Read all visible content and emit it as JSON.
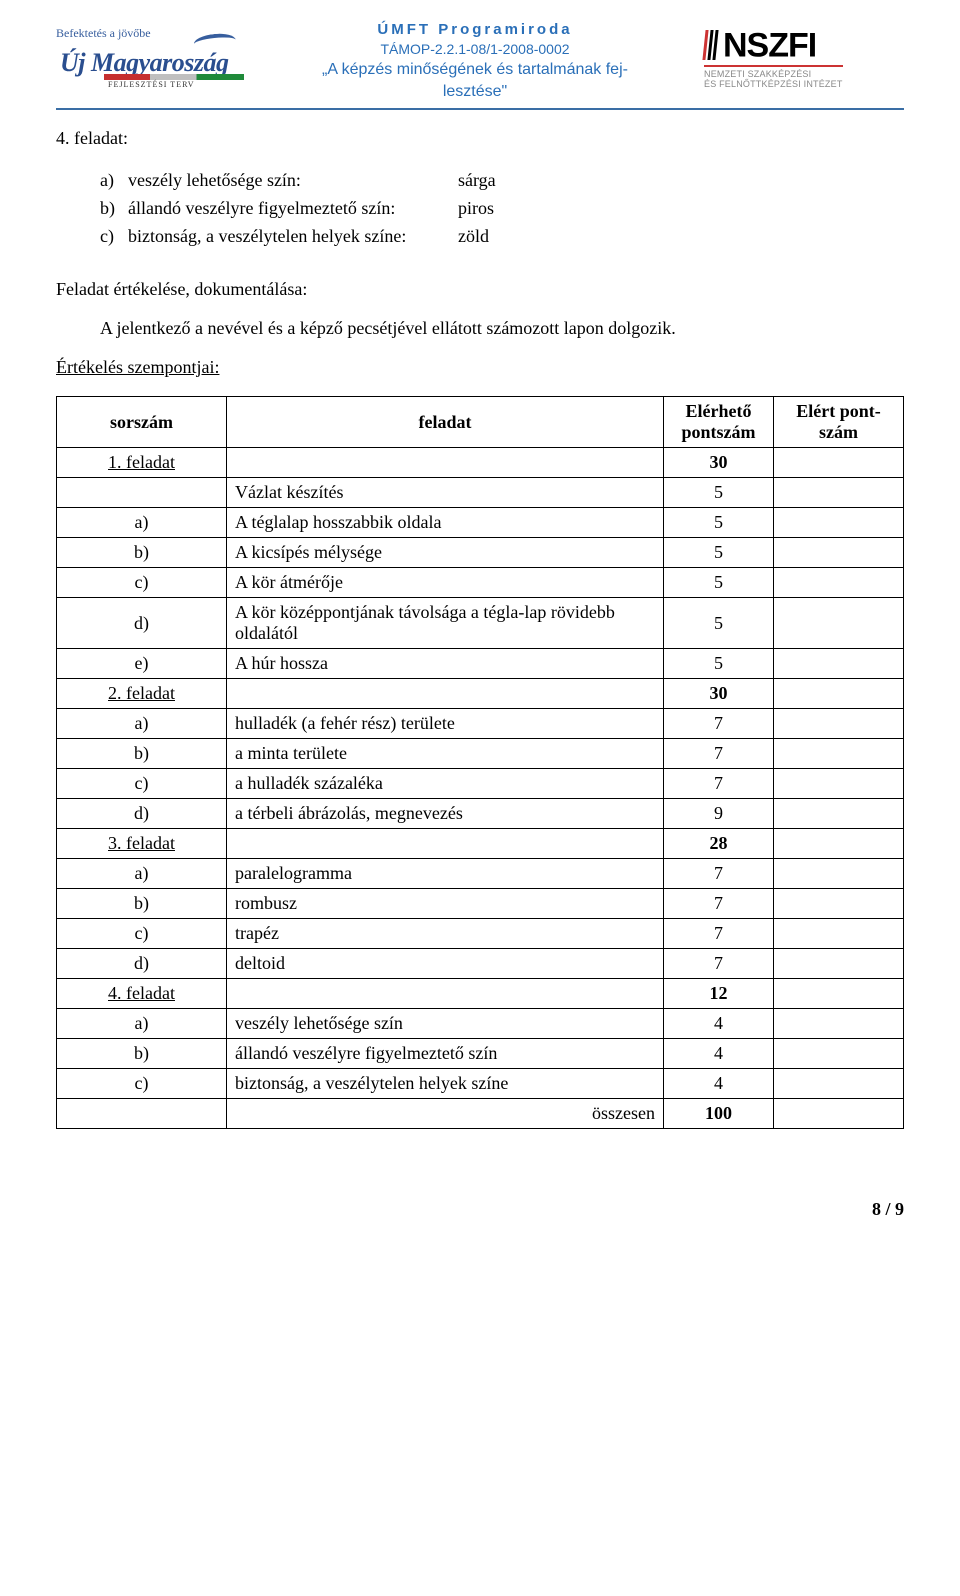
{
  "header": {
    "logo_left_script": "Befektetés a jövőbe",
    "logo_left_big": "Új Magyaroszág",
    "logo_left_sub": "FEJLESZTÉSI TERV",
    "center_line1": "ÚMFT Programiroda",
    "center_line2": "TÁMOP-2.2.1-08/1-2008-0002",
    "center_line3a": "„A képzés minőségének és tartalmának fej-",
    "center_line3b": "lesztése\"",
    "logo_right_big": "NSZFI",
    "logo_right_sub1": "NEMZETI SZAKKÉPZÉSI",
    "logo_right_sub2": "ÉS FELNŐTTKÉPZÉSI INTÉZET"
  },
  "colors": {
    "header_rule": "#3a6ea5",
    "header_text": "#2a6fb8",
    "red": "#c33",
    "green": "#1f8a3a",
    "grey": "#bfbfbf",
    "logo_blue": "#2a4e8f"
  },
  "task_heading": "4. feladat:",
  "bullets": [
    {
      "k": "a)",
      "label": "veszély lehetősége szín:",
      "val": "sárga"
    },
    {
      "k": "b)",
      "label": "állandó veszélyre figyelmeztető szín:",
      "val": "piros"
    },
    {
      "k": "c)",
      "label": "biztonság, a veszélytelen helyek színe:",
      "val": "zöld"
    }
  ],
  "eval_title": "Feladat értékelése, dokumentálása:",
  "eval_sentence": "A jelentkező a nevével és a képző pecsétjével ellátott számozott lapon dolgozik.",
  "eval_subtitle": "Értékelés szempontjai:",
  "tbl": {
    "head": [
      "sorszám",
      "feladat",
      "Elérhető pontszám",
      "Elért pont-szám"
    ],
    "rows": [
      {
        "c0": "1. feladat",
        "c0u": true,
        "c1": "",
        "c2": "30",
        "bold": true
      },
      {
        "c0": "",
        "c1": "Vázlat készítés",
        "c2": "5"
      },
      {
        "c0": "a)",
        "c1": "A téglalap hosszabbik oldala",
        "c2": "5"
      },
      {
        "c0": "b)",
        "c1": "A kicsípés mélysége",
        "c2": "5"
      },
      {
        "c0": "c)",
        "c1": "A kör átmérője",
        "c2": "5"
      },
      {
        "c0": "d)",
        "c1": "A kör középpontjának távolsága a tégla-lap rövidebb oldalától",
        "c2": "5"
      },
      {
        "c0": "e)",
        "c1": "A húr hossza",
        "c2": "5"
      },
      {
        "c0": "2. feladat",
        "c0u": true,
        "c1": "",
        "c2": "30",
        "bold": true
      },
      {
        "c0": "a)",
        "c1": "hulladék (a fehér rész) területe",
        "c2": "7"
      },
      {
        "c0": "b)",
        "c1": "a minta területe",
        "c2": "7"
      },
      {
        "c0": "c)",
        "c1": "a hulladék százaléka",
        "c2": "7"
      },
      {
        "c0": "d)",
        "c1": "a térbeli ábrázolás, megnevezés",
        "c2": "9"
      },
      {
        "c0": "3. feladat",
        "c0u": true,
        "c1": "",
        "c2": "28",
        "bold": true
      },
      {
        "c0": "a)",
        "c1": "paralelogramma",
        "c2": "7"
      },
      {
        "c0": "b)",
        "c1": "rombusz",
        "c2": "7"
      },
      {
        "c0": "c)",
        "c1": "trapéz",
        "c2": "7"
      },
      {
        "c0": "d)",
        "c1": "deltoid",
        "c2": "7"
      },
      {
        "c0": "4. feladat",
        "c0u": true,
        "c1": "",
        "c2": "12",
        "bold": true
      },
      {
        "c0": "a)",
        "c1": "veszély lehetősége szín",
        "c2": "4"
      },
      {
        "c0": "b)",
        "c1": "állandó veszélyre figyelmeztető szín",
        "c2": "4"
      },
      {
        "c0": "c)",
        "c1": "biztonság, a veszélytelen helyek színe",
        "c2": "4"
      },
      {
        "c0": "",
        "c1": "összesen",
        "c1right": true,
        "c2": "100",
        "bold": true
      }
    ]
  },
  "footer": "8 / 9"
}
